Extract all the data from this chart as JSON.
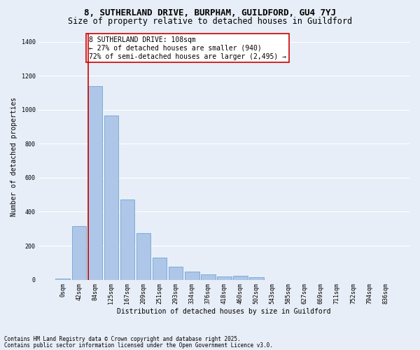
{
  "title1": "8, SUTHERLAND DRIVE, BURPHAM, GUILDFORD, GU4 7YJ",
  "title2": "Size of property relative to detached houses in Guildford",
  "xlabel": "Distribution of detached houses by size in Guildford",
  "ylabel": "Number of detached properties",
  "categories": [
    "0sqm",
    "42sqm",
    "84sqm",
    "125sqm",
    "167sqm",
    "209sqm",
    "251sqm",
    "293sqm",
    "334sqm",
    "376sqm",
    "418sqm",
    "460sqm",
    "502sqm",
    "543sqm",
    "585sqm",
    "627sqm",
    "669sqm",
    "711sqm",
    "752sqm",
    "794sqm",
    "836sqm"
  ],
  "bar_values": [
    5,
    315,
    1140,
    965,
    470,
    275,
    130,
    75,
    48,
    30,
    20,
    22,
    16,
    0,
    0,
    0,
    0,
    0,
    0,
    0,
    0
  ],
  "bar_color": "#aec6e8",
  "bar_edge_color": "#5b9bd5",
  "background_color": "#e8eef7",
  "grid_color": "#ffffff",
  "vline_color": "#cc0000",
  "vline_x_index": 1.55,
  "annotation_text": "8 SUTHERLAND DRIVE: 108sqm\n← 27% of detached houses are smaller (940)\n72% of semi-detached houses are larger (2,495) →",
  "annotation_box_color": "#ffffff",
  "annotation_box_edge": "#cc0000",
  "ylim": [
    0,
    1450
  ],
  "yticks": [
    0,
    200,
    400,
    600,
    800,
    1000,
    1200,
    1400
  ],
  "footer1": "Contains HM Land Registry data © Crown copyright and database right 2025.",
  "footer2": "Contains public sector information licensed under the Open Government Licence v3.0.",
  "title1_fontsize": 9,
  "title2_fontsize": 8.5,
  "axis_label_fontsize": 7,
  "tick_fontsize": 6,
  "annotation_fontsize": 7,
  "footer_fontsize": 5.5
}
